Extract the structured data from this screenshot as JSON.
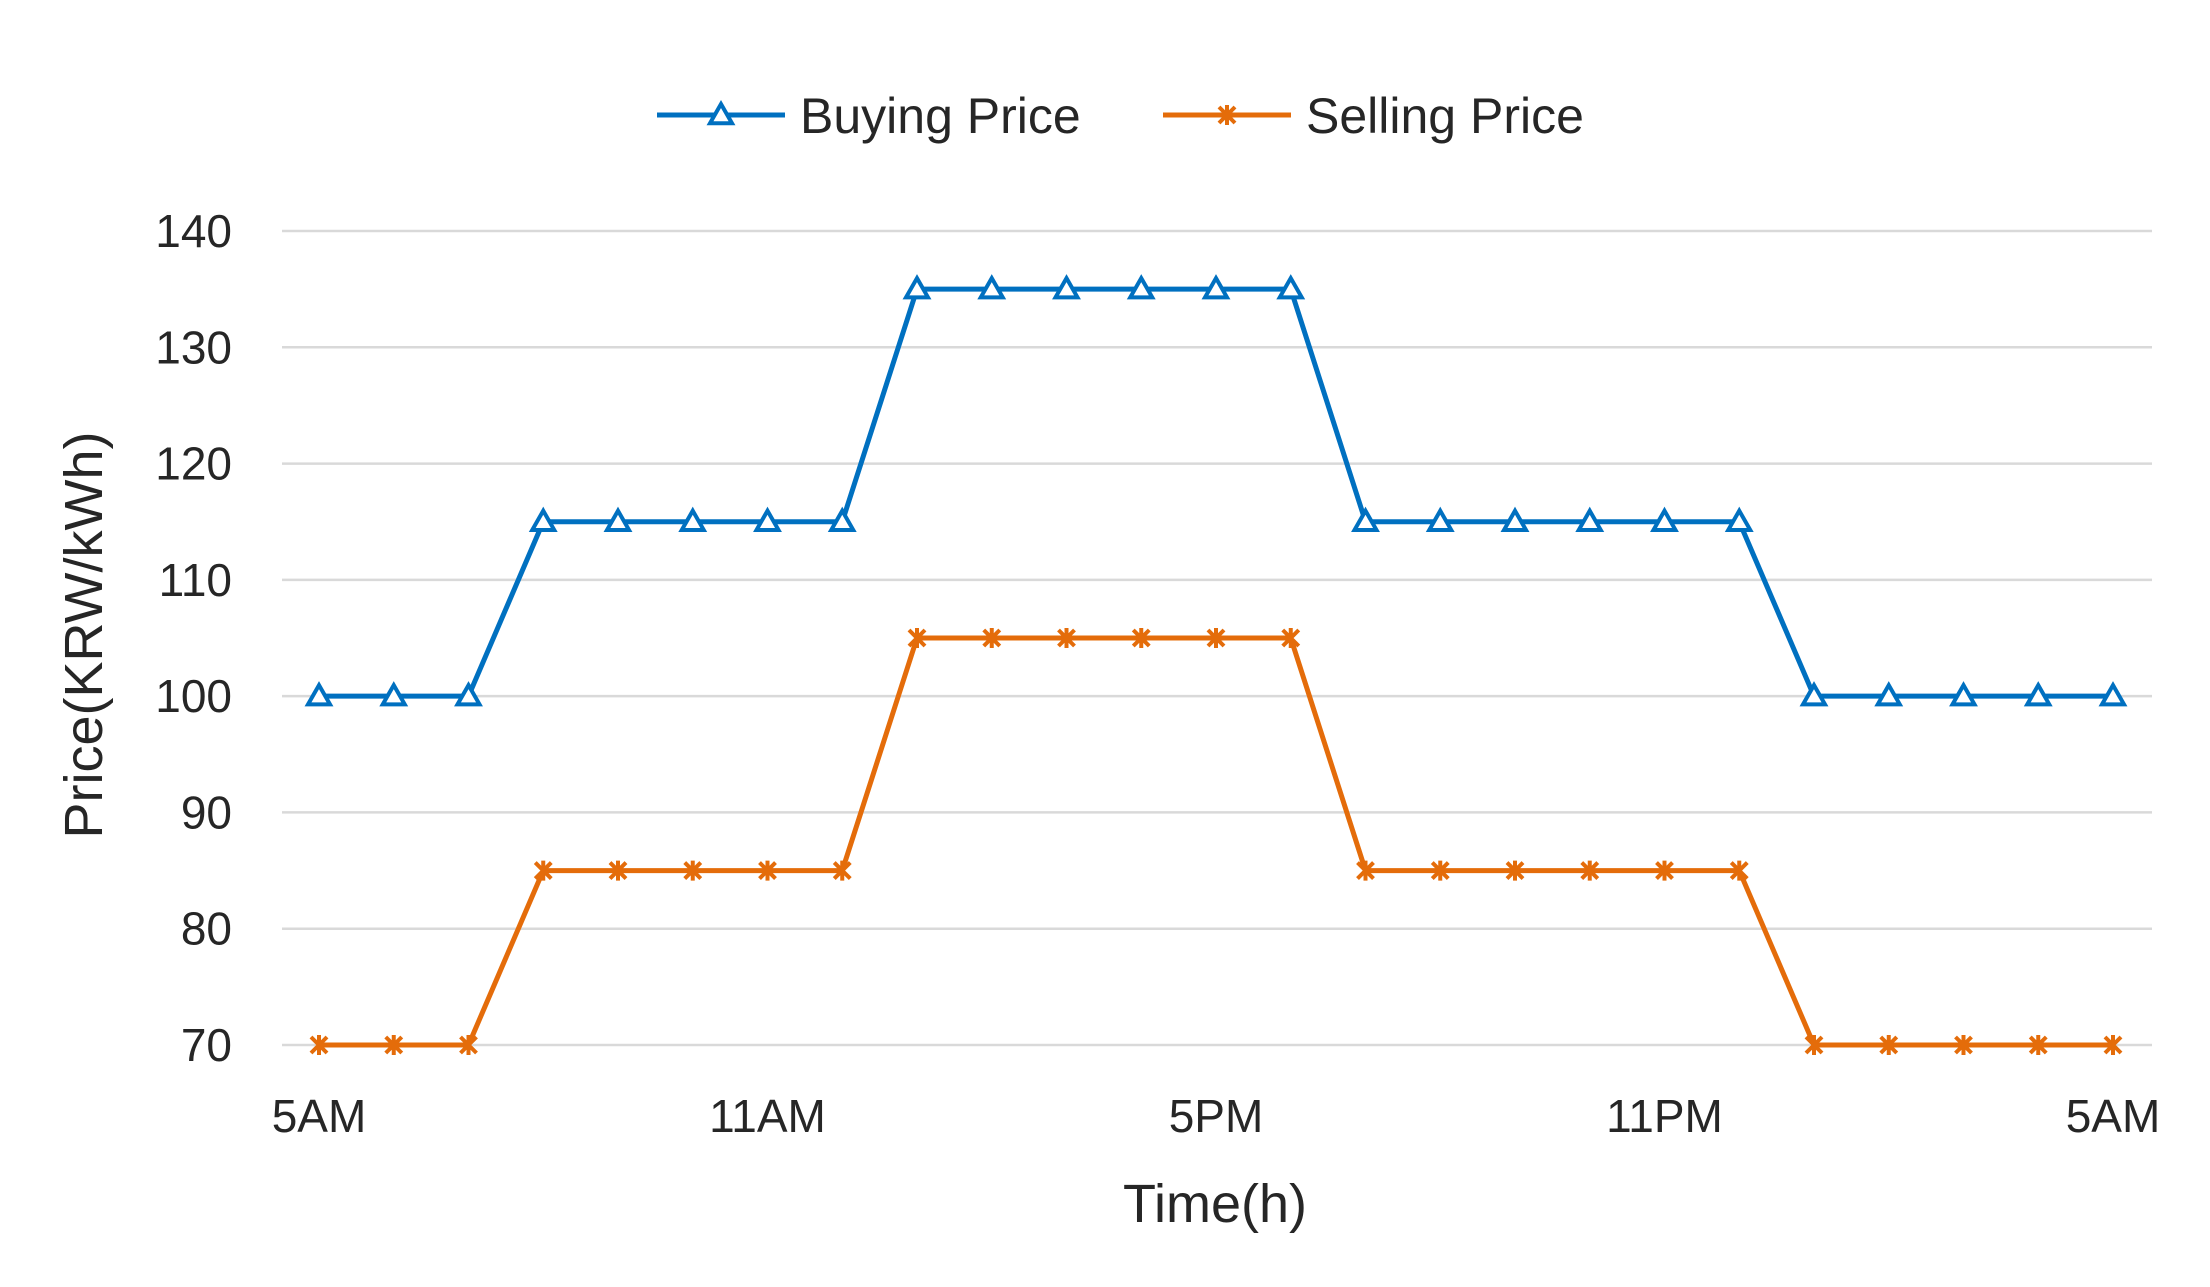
{
  "chart_data": {
    "type": "line",
    "title": "",
    "xlabel": "Time(h)",
    "ylabel": "Price(KRW/kWh)",
    "ylim": [
      70,
      140
    ],
    "yticks": [
      70,
      80,
      90,
      100,
      110,
      120,
      130,
      140
    ],
    "x_tick_labels": [
      "5AM",
      "11AM",
      "5PM",
      "11PM",
      "5AM"
    ],
    "x_tick_indices": [
      0,
      6,
      12,
      18,
      24
    ],
    "grid": "horizontal",
    "legend_position": "top",
    "series": [
      {
        "name": "Buying Price",
        "color": "#0070c0",
        "marker": "triangle-open",
        "values": [
          100,
          100,
          100,
          115,
          115,
          115,
          115,
          115,
          135,
          135,
          135,
          135,
          135,
          135,
          115,
          115,
          115,
          115,
          115,
          115,
          100,
          100,
          100,
          100,
          100
        ]
      },
      {
        "name": "Selling Price",
        "color": "#e46c0a",
        "marker": "x-star",
        "values": [
          70,
          70,
          70,
          85,
          85,
          85,
          85,
          85,
          105,
          105,
          105,
          105,
          105,
          105,
          85,
          85,
          85,
          85,
          85,
          85,
          70,
          70,
          70,
          70,
          70
        ]
      }
    ]
  }
}
